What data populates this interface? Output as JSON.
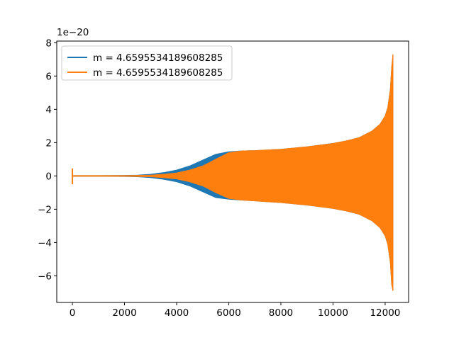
{
  "chart_data": {
    "type": "line",
    "title": "",
    "xlabel": "",
    "ylabel": "",
    "y_offset_label": "1e−20",
    "xlim": [
      -600,
      12900
    ],
    "ylim": [
      -7.6,
      8.1
    ],
    "xticks": [
      0,
      2000,
      4000,
      6000,
      8000,
      10000,
      12000
    ],
    "yticks": [
      -6,
      -4,
      -2,
      0,
      2,
      4,
      6,
      8
    ],
    "grid": false,
    "legend_position": "upper left",
    "series": [
      {
        "name": "m = 4.6595534189608285",
        "color": "#1f77b4",
        "envelope": {
          "x": [
            0,
            1000,
            2000,
            2500,
            3000,
            3500,
            4000,
            4500,
            5000,
            5500,
            6000,
            6500,
            7000,
            8000,
            9000,
            10000,
            10500,
            11000,
            11500,
            11800,
            12000,
            12100,
            12200,
            12250,
            12300
          ],
          "upper": [
            0.02,
            0.02,
            0.03,
            0.05,
            0.1,
            0.2,
            0.35,
            0.6,
            0.95,
            1.3,
            1.45,
            1.5,
            1.52,
            1.6,
            1.75,
            1.95,
            2.1,
            2.3,
            2.7,
            3.1,
            3.6,
            4.1,
            5.2,
            6.5,
            7.3
          ],
          "lower": [
            -0.02,
            -0.02,
            -0.03,
            -0.05,
            -0.1,
            -0.2,
            -0.35,
            -0.6,
            -0.95,
            -1.3,
            -1.4,
            -1.45,
            -1.5,
            -1.6,
            -1.75,
            -1.95,
            -2.1,
            -2.3,
            -2.7,
            -3.1,
            -3.6,
            -4.1,
            -5.2,
            -6.5,
            -6.9
          ]
        }
      },
      {
        "name": "m = 4.6595534189608285",
        "color": "#ff7f0e",
        "envelope": {
          "x": [
            0,
            1000,
            2000,
            2500,
            3000,
            3500,
            4000,
            4500,
            5000,
            5500,
            6000,
            6500,
            7000,
            8000,
            9000,
            10000,
            10500,
            11000,
            11500,
            11800,
            12000,
            12100,
            12200,
            12250,
            12300
          ],
          "upper": [
            0.02,
            0.02,
            0.02,
            0.03,
            0.05,
            0.1,
            0.18,
            0.35,
            0.6,
            1.0,
            1.4,
            1.5,
            1.52,
            1.6,
            1.75,
            1.95,
            2.1,
            2.3,
            2.7,
            3.1,
            3.6,
            4.1,
            5.2,
            6.5,
            7.3
          ],
          "lower": [
            -0.02,
            -0.02,
            -0.02,
            -0.03,
            -0.05,
            -0.1,
            -0.18,
            -0.35,
            -0.6,
            -1.0,
            -1.35,
            -1.45,
            -1.5,
            -1.6,
            -1.75,
            -1.95,
            -2.1,
            -2.3,
            -2.7,
            -3.1,
            -3.6,
            -4.1,
            -5.2,
            -6.5,
            -6.9
          ]
        },
        "initial_spike": {
          "x": 0,
          "upper": 0.45,
          "lower": -0.5
        }
      }
    ]
  }
}
